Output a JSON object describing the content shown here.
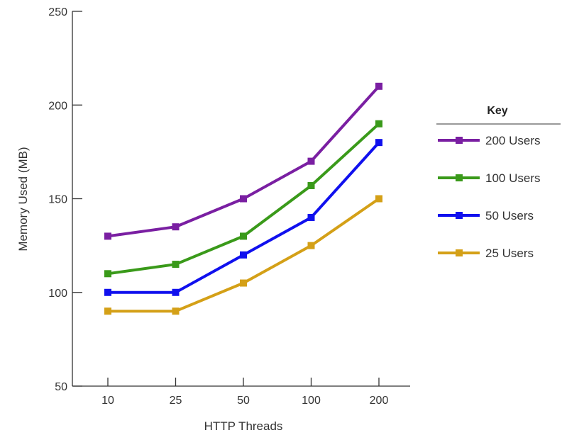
{
  "chart_data": {
    "type": "line",
    "title": "",
    "xlabel": "HTTP Threads",
    "ylabel": "Memory Used (MB)",
    "categories": [
      "10",
      "25",
      "50",
      "100",
      "200"
    ],
    "ylim": [
      50,
      250
    ],
    "yticks": [
      50,
      100,
      150,
      200,
      250
    ],
    "grid": false,
    "legend": {
      "title": "Key",
      "position": "right"
    },
    "series": [
      {
        "name": "200 Users",
        "color": "#7a1fa2",
        "values": [
          130,
          135,
          150,
          170,
          210
        ]
      },
      {
        "name": "100 Users",
        "color": "#3a9a1a",
        "values": [
          110,
          115,
          130,
          157,
          190
        ]
      },
      {
        "name": "50 Users",
        "color": "#1010ee",
        "values": [
          100,
          100,
          120,
          140,
          180
        ]
      },
      {
        "name": "25 Users",
        "color": "#d4a017",
        "values": [
          90,
          90,
          105,
          125,
          150
        ]
      }
    ]
  }
}
